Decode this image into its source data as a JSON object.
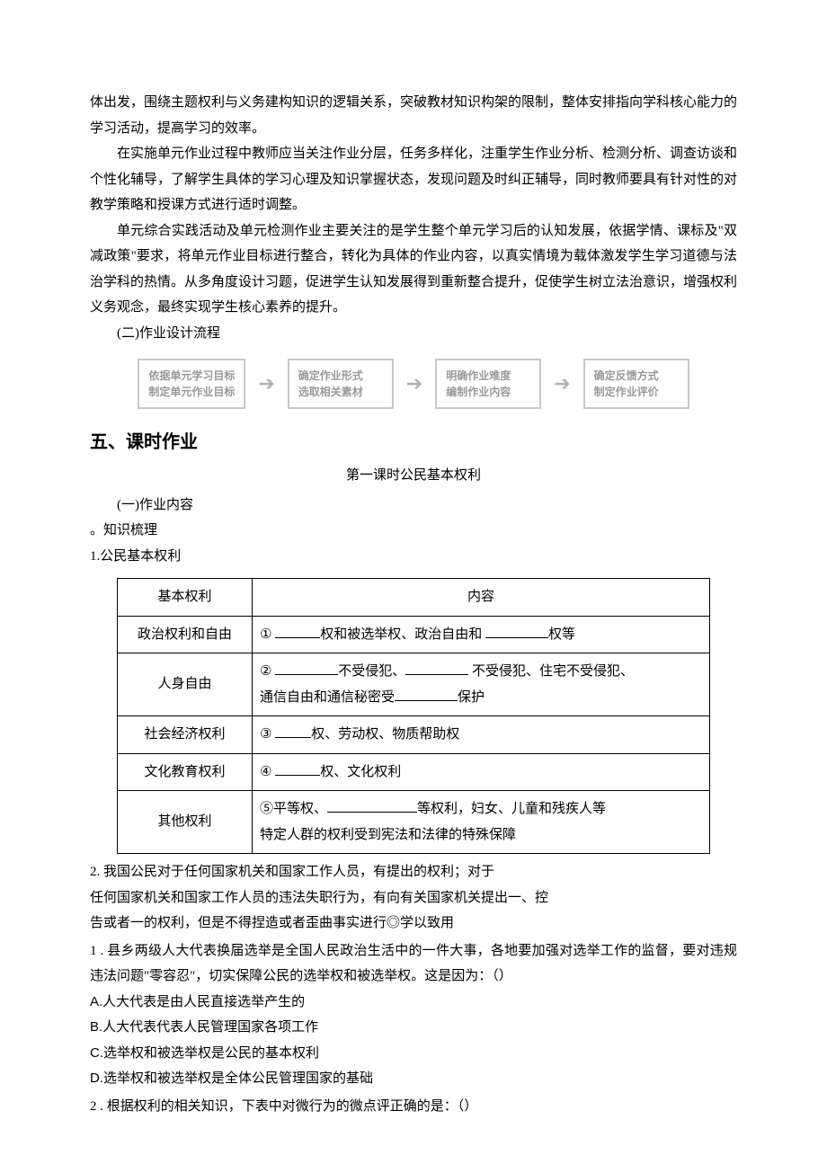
{
  "paras": {
    "p1": "体出发，围绕主题权利与义务建构知识的逻辑关系，突破教材知识构架的限制，整体安排指向学科核心能力的学习活动，提高学习的效率。",
    "p2": "在实施单元作业过程中教师应当关注作业分层，任务多样化，注重学生作业分析、检测分析、调查访谈和个性化辅导，了解学生具体的学习心理及知识掌握状态，发现问题及时纠正辅导，同时教师要具有针对性的对教学策略和授课方式进行适时调整。",
    "p3": "单元综合实践活动及单元检测作业主要关注的是学生整个单元学习后的认知发展，依据学情、课标及\"双减政策\"要求，将单元作业目标进行整合，转化为具体的作业内容，以真实情境为载体激发学生学习道德与法治学科的热情。从多角度设计习题，促进学生认知发展得到重新整合提升，促使学生树立法治意识，增强权利义务观念，最终实现学生核心素养的提升。",
    "sub2": "(二)作业设计流程"
  },
  "flow": {
    "boxes": [
      {
        "l1": "依据单元学习目标",
        "l2": "制定单元作业目标"
      },
      {
        "l1": "确定作业形式",
        "l2": "选取相关素材"
      },
      {
        "l1": "明确作业难度",
        "l2": "编制作业内容"
      },
      {
        "l1": "确定反馈方式",
        "l2": "制定作业评价"
      }
    ],
    "box_border": "#c8c8c8",
    "box_text_color": "#9a9a9a",
    "arrow_color": "#b0b0b0"
  },
  "section5": {
    "heading": "五、课时作业",
    "lesson_title": "第一课时公民基本权利",
    "sub1": "(一)作业内容",
    "bullet": "。知识梳理",
    "item1_label": "1.公民基本权利"
  },
  "table": {
    "header": {
      "c1": "基本权利",
      "c2": "内容"
    },
    "rows": [
      {
        "c1": "政治权利和自由",
        "c2_pre": "① ",
        "c2_mid1": "权和被选举权、政治自由和 ",
        "c2_post": "权等"
      },
      {
        "c1": "人身自由",
        "c2_pre": "② ",
        "c2_mid1": "不受侵犯、",
        "c2_mid2": " 不受侵犯、住宅不受侵犯、",
        "c2_line2a": "通信自由和通信秘密受",
        "c2_line2b": "保护"
      },
      {
        "c1": "社会经济权利",
        "c2_pre": "③ ",
        "c2_post": "权、劳动权、物质帮助权"
      },
      {
        "c1": "文化教育权利",
        "c2_pre": "④ ",
        "c2_post": "权、文化权利"
      },
      {
        "c1": "其他权利",
        "c2_pre": "⑤平等权、",
        "c2_mid1": "等权利，妇女、儿童和残疾人等",
        "c2_line2": "特定人群的权利受到宪法和法律的特殊保障"
      }
    ]
  },
  "item2": {
    "l1": "2. 我国公民对于任何国家机关和国家工作人员，有提出的权利；对于",
    "l2": "任何国家机关和国家工作人员的违法失职行为，有向有关国家机关提出一、控",
    "l3": "告或者一的权利，但是不得捏造或者歪曲事实进行◎学以致用"
  },
  "q1": {
    "stem": "1 . 县乡两级人大代表换届选举是全国人民政治生活中的一件大事，各地要加强对选举工作的监督，要对违规违法问题\"零容忍\"，切实保障公民的选举权和被选举权。这是因为：（）",
    "optA": "A.人大代表是由人民直接选举产生的",
    "optB": "B.人大代表代表人民管理国家各项工作",
    "optC": "C.选举权和被选举权是公民的基本权利",
    "optD": "D.选举权和被选举权是全体公民管理国家的基础"
  },
  "q2": {
    "stem": "2  . 根据权利的相关知识，下表中对微行为的微点评正确的是：（）"
  }
}
